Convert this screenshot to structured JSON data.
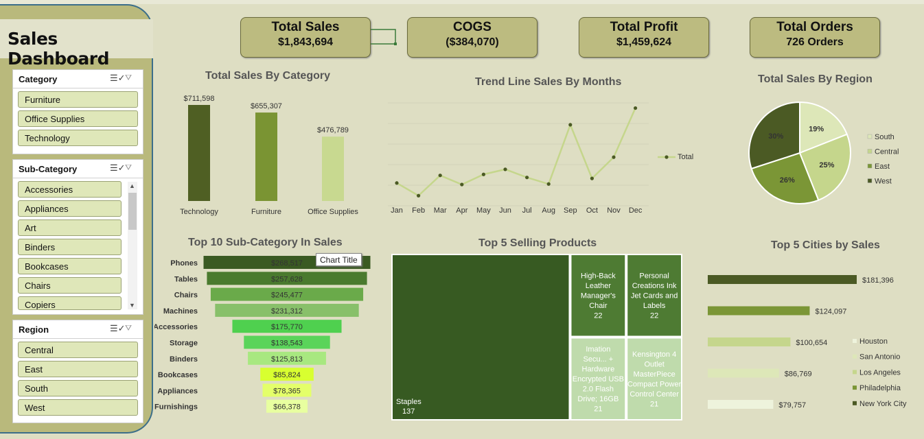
{
  "title": "Sales Dashboard",
  "kpis": [
    {
      "label": "Total Sales",
      "value": "$1,843,694"
    },
    {
      "label": "COGS",
      "value": "($384,070)"
    },
    {
      "label": "Total Profit",
      "value": "$1,459,624"
    },
    {
      "label": "Total Orders",
      "value": "726 Orders"
    }
  ],
  "slicers": {
    "category": {
      "label": "Category",
      "items": [
        "Furniture",
        "Office Supplies",
        "Technology"
      ]
    },
    "subcategory": {
      "label": "Sub-Category",
      "items": [
        "Accessories",
        "Appliances",
        "Art",
        "Binders",
        "Bookcases",
        "Chairs",
        "Copiers"
      ]
    },
    "region": {
      "label": "Region",
      "items": [
        "Central",
        "East",
        "South",
        "West"
      ]
    }
  },
  "tooltip": "Chart Title",
  "colors": {
    "dark_green": "#4f5f23",
    "mid_green": "#7a9433",
    "light_green": "#c8d990",
    "background": "#dedec3"
  },
  "chart_data": [
    {
      "type": "bar",
      "title": "Total Sales By Category",
      "categories": [
        "Technology",
        "Furniture",
        "Office Supplies"
      ],
      "values": [
        711598,
        655307,
        476789
      ],
      "labels": [
        "$711,598",
        "$655,307",
        "$476,789"
      ],
      "colors": [
        "#4f5f23",
        "#7a9433",
        "#c8d990"
      ]
    },
    {
      "type": "line",
      "title": "Trend Line Sales By Months",
      "categories": [
        "Jan",
        "Feb",
        "Mar",
        "Apr",
        "May",
        "Jun",
        "Jul",
        "Aug",
        "Sep",
        "Oct",
        "Nov",
        "Dec"
      ],
      "series": [
        {
          "name": "Total",
          "values": [
            95000,
            70000,
            110000,
            92000,
            112000,
            122000,
            106000,
            93000,
            210000,
            104000,
            146000,
            243000
          ]
        }
      ],
      "legend": "right"
    },
    {
      "type": "pie",
      "title": "Total Sales By Region",
      "slices": [
        {
          "name": "South",
          "percent": 19,
          "label": "19%",
          "color": "#dde7b8"
        },
        {
          "name": "Central",
          "percent": 25,
          "label": "25%",
          "color": "#c5d68c"
        },
        {
          "name": "East",
          "percent": 26,
          "label": "26%",
          "color": "#7b9636"
        },
        {
          "name": "West",
          "percent": 30,
          "label": "30%",
          "color": "#4b5a24"
        }
      ],
      "legend": "right"
    },
    {
      "type": "bar",
      "orientation": "funnel",
      "title": "Top 10 Sub-Category In Sales",
      "categories": [
        "Phones",
        "Tables",
        "Chairs",
        "Machines",
        "Accessories",
        "Storage",
        "Binders",
        "Bookcases",
        "Appliances",
        "Furnishings"
      ],
      "values": [
        268517,
        257628,
        245477,
        231312,
        175770,
        138543,
        125813,
        85824,
        78365,
        66378
      ],
      "labels": [
        "$268,517",
        "$257,628",
        "$245,477",
        "$231,312",
        "$175,770",
        "$138,543",
        "$125,813",
        "$85,824",
        "$78,365",
        "$66,378"
      ],
      "colors": [
        "#3a5a22",
        "#4a7a2e",
        "#6aaa4a",
        "#88c06a",
        "#4fd04f",
        "#5ad45a",
        "#a8e880",
        "#d8ff30",
        "#e4ff6a",
        "#e8ffa0"
      ]
    },
    {
      "type": "treemap",
      "title": "Top 5 Selling Products",
      "items": [
        {
          "name": "Staples",
          "value": 137,
          "color": "#375a22"
        },
        {
          "name": "High-Back Leather Manager's Chair",
          "value": 22,
          "color": "#4e7b33"
        },
        {
          "name": "Personal Creations Ink Jet Cards and Labels",
          "value": 22,
          "color": "#4e7b33"
        },
        {
          "name": "Imation Secu... + Hardware Encrypted USB 2.0 Flash Drive; 16GB",
          "value": 21,
          "color": "#bfdbac"
        },
        {
          "name": "Kensington 4 Outlet MasterPiece Compact Power Control Center",
          "value": 21,
          "color": "#bfdbac"
        }
      ]
    },
    {
      "type": "bar",
      "orientation": "horizontal",
      "title": "Top 5 Cities by Sales",
      "categories": [
        "New York City",
        "Philadelphia",
        "Los Angeles",
        "San Antonio",
        "Houston"
      ],
      "values": [
        181396,
        124097,
        100654,
        86769,
        79757
      ],
      "labels": [
        "$181,396",
        "$124,097",
        "$100,654",
        "$86,769",
        "$79,757"
      ],
      "colors": [
        "#4b5a24",
        "#7b9636",
        "#c5d68c",
        "#dde7b8",
        "#eef3dc"
      ],
      "legend": [
        "Houston",
        "San Antonio",
        "Los Angeles",
        "Philadelphia",
        "New York City"
      ],
      "legend_colors": [
        "#eef3dc",
        "#dde7b8",
        "#c5d68c",
        "#7b9636",
        "#4b5a24"
      ]
    }
  ]
}
